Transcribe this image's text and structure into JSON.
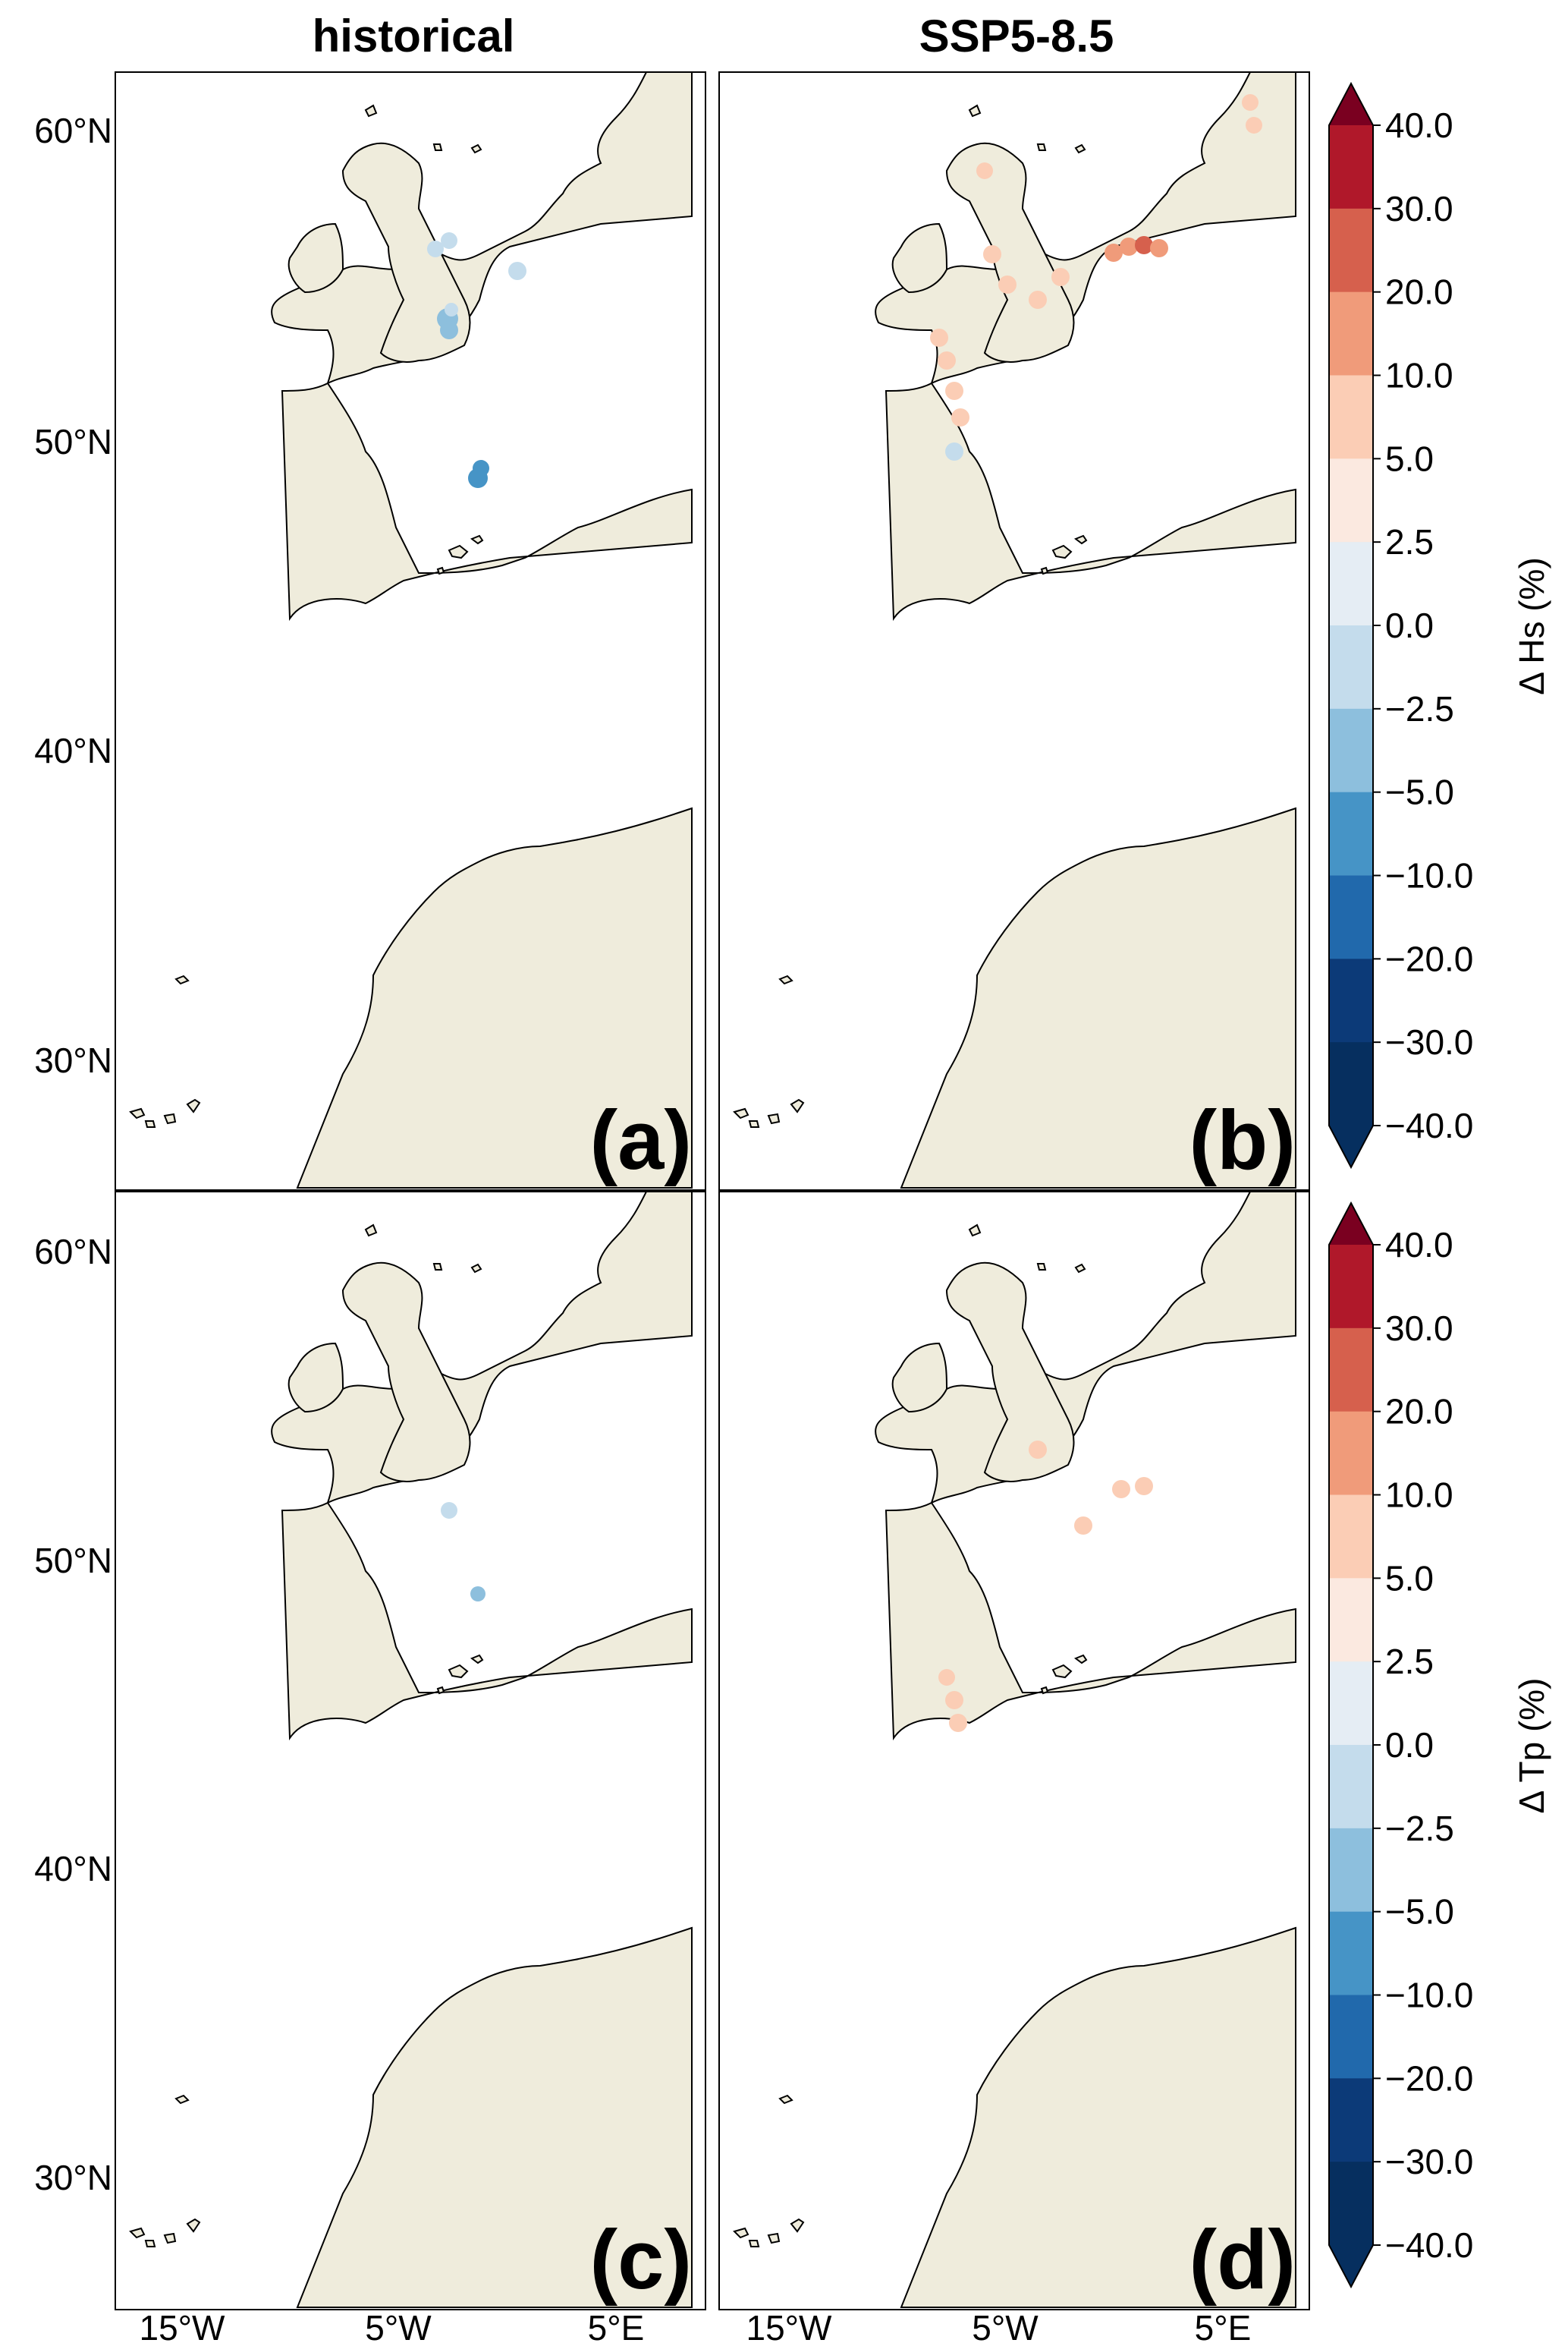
{
  "figure": {
    "column_titles": [
      "historical",
      "SSP5-8.5"
    ],
    "lat_ticks": [
      "60°N",
      "50°N",
      "40°N",
      "30°N"
    ],
    "lon_ticks": [
      "15°W",
      "5°W",
      "5°E"
    ],
    "panels": [
      {
        "id": "a",
        "label": "(a)",
        "variable": "Hs",
        "scenario": "historical"
      },
      {
        "id": "b",
        "label": "(b)",
        "variable": "Hs",
        "scenario": "SSP5-8.5"
      },
      {
        "id": "c",
        "label": "(c)",
        "variable": "Tp",
        "scenario": "historical"
      },
      {
        "id": "d",
        "label": "(d)",
        "variable": "Tp",
        "scenario": "SSP5-8.5"
      }
    ],
    "colorbars": [
      {
        "variable": "Hs",
        "title": "Δ Hs (%)"
      },
      {
        "variable": "Tp",
        "title": "Δ Tp (%)"
      }
    ],
    "colorbar_levels": [
      "40.0",
      "30.0",
      "20.0",
      "10.0",
      "5.0",
      "2.5",
      "0.0",
      "−2.5",
      "−5.0",
      "−10.0",
      "−20.0",
      "−30.0",
      "−40.0"
    ],
    "colors": {
      "land": "#efecdc",
      "sea": "#ffffff",
      "coast_line": "#000000",
      "bins_top_to_bottom": [
        "#7a0020",
        "#b0182a",
        "#d6604d",
        "#f09b7a",
        "#fbcdb5",
        "#fbe9e0",
        "#e5edf4",
        "#c4dcec",
        "#8dbfdd",
        "#4694c6",
        "#2169ac",
        "#0c3a78",
        "#062f5f"
      ]
    }
  }
}
